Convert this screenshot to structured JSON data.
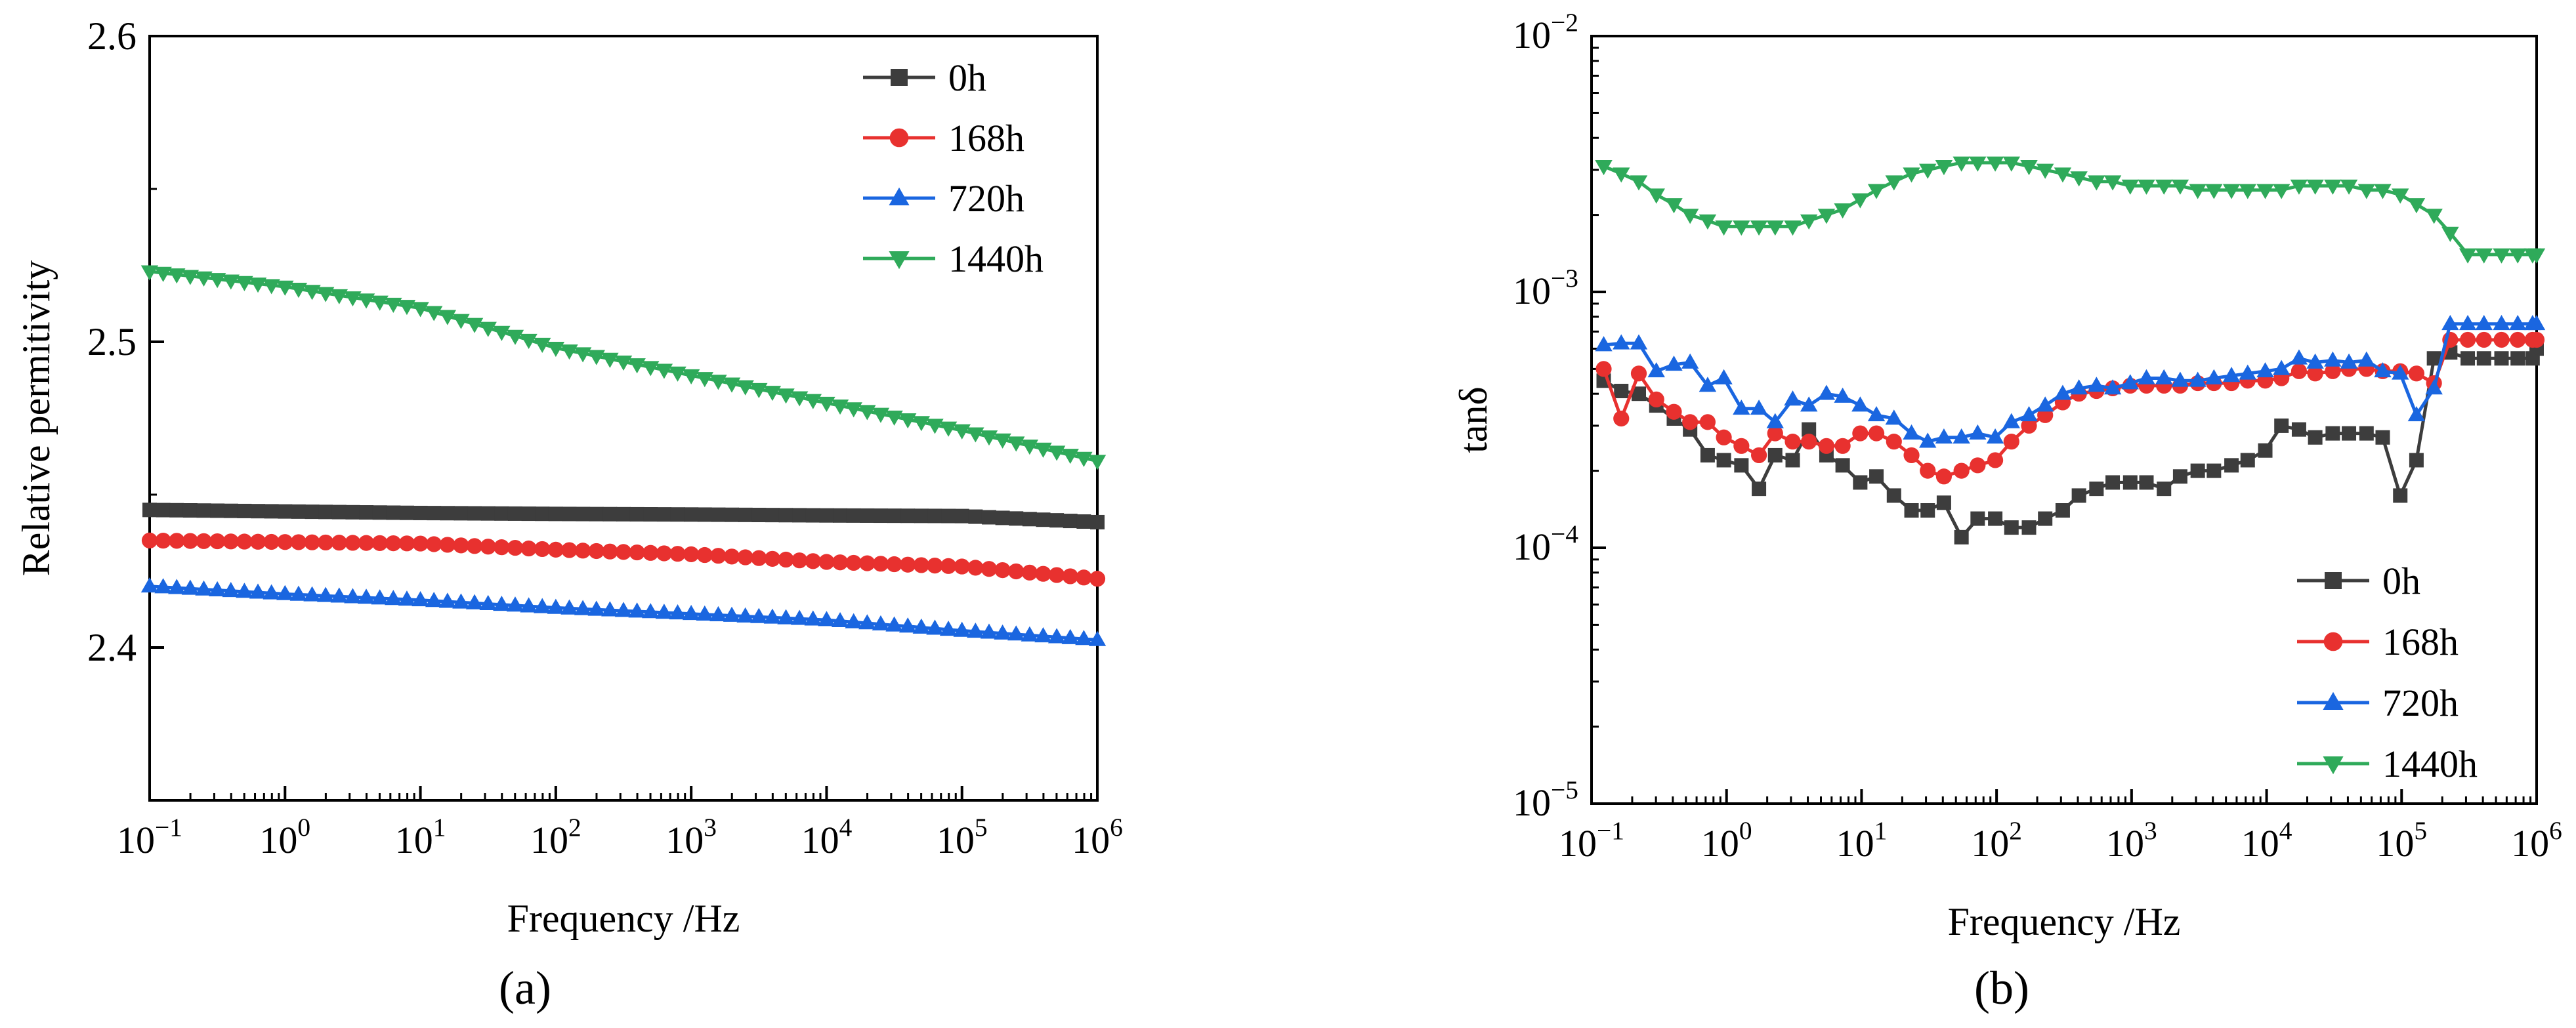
{
  "figure": {
    "panel_a_label": "(a)",
    "panel_b_label": "(b)"
  },
  "legend_labels": [
    "0h",
    "168h",
    "720h",
    "1440h"
  ],
  "series_colors": [
    "#3d3d3d",
    "#e8312f",
    "#1a66e0",
    "#2faa5a"
  ],
  "series_markers": [
    "square",
    "circle",
    "triangle-up",
    "triangle-down"
  ],
  "chart_data": [
    {
      "type": "line",
      "panel": "(a)",
      "title": "",
      "xlabel": "Frequency /Hz",
      "ylabel": "Relative permitivity",
      "xscale": "log",
      "yscale": "linear",
      "xlim_exp": [
        -1,
        6
      ],
      "ylim": [
        2.35,
        2.6
      ],
      "xtick_exponents": [
        -1,
        0,
        1,
        2,
        3,
        4,
        5,
        6
      ],
      "xtick_labels": [
        "10",
        "10",
        "10",
        "10",
        "10",
        "10",
        "10",
        "10"
      ],
      "xtick_exp_labels": [
        "−1",
        "0",
        "1",
        "2",
        "3",
        "4",
        "5",
        "6"
      ],
      "yticks": [
        2.4,
        2.5,
        2.6
      ],
      "ytick_labels": [
        "2.4",
        "2.5",
        "2.6"
      ],
      "legend_position": "top-right",
      "log_freq_start": -1,
      "log_freq_end": 6,
      "points_per_series": 71,
      "series": [
        {
          "name": "0h",
          "control_log_f": [
            -1,
            0,
            1,
            2,
            3,
            4,
            5,
            6
          ],
          "control_values": [
            2.445,
            2.4445,
            2.444,
            2.4437,
            2.4435,
            2.4432,
            2.443,
            2.441
          ]
        },
        {
          "name": "168h",
          "control_log_f": [
            -1,
            0,
            1,
            2,
            3,
            4,
            5,
            6
          ],
          "control_values": [
            2.435,
            2.4345,
            2.434,
            2.432,
            2.4305,
            2.428,
            2.4265,
            2.4225
          ]
        },
        {
          "name": "720h",
          "control_log_f": [
            -1,
            0,
            1,
            2,
            3,
            4,
            5,
            6
          ],
          "control_values": [
            2.42,
            2.4175,
            2.4155,
            2.413,
            2.411,
            2.409,
            2.4055,
            2.4025
          ]
        },
        {
          "name": "1440h",
          "control_log_f": [
            -1,
            0,
            1,
            2,
            3,
            4,
            5,
            6
          ],
          "control_values": [
            2.523,
            2.518,
            2.511,
            2.498,
            2.489,
            2.48,
            2.471,
            2.461
          ]
        }
      ]
    },
    {
      "type": "line",
      "panel": "(b)",
      "title": "",
      "xlabel": "Frequency /Hz",
      "ylabel": "tanδ",
      "xscale": "log",
      "yscale": "log",
      "xlim_exp": [
        -1,
        6
      ],
      "ylim_exp": [
        -5,
        -2
      ],
      "xtick_exponents": [
        -1,
        0,
        1,
        2,
        3,
        4,
        5,
        6
      ],
      "xtick_labels": [
        "10",
        "10",
        "10",
        "10",
        "10",
        "10",
        "10",
        "10"
      ],
      "xtick_exp_labels": [
        "−1",
        "0",
        "1",
        "2",
        "3",
        "4",
        "5",
        "6"
      ],
      "ytick_exponents": [
        -5,
        -4,
        -3,
        -2
      ],
      "ytick_labels": [
        "10",
        "10",
        "10",
        "10"
      ],
      "ytick_exp_labels": [
        "−5",
        "−4",
        "−3",
        "−2"
      ],
      "legend_position": "bottom-right",
      "log_freq_start": -0.91,
      "log_freq_end": 6,
      "points_per_series": 57,
      "series": [
        {
          "name": "0h",
          "log_f": [
            -0.91,
            -0.78,
            -0.65,
            -0.52,
            -0.39,
            -0.27,
            -0.14,
            -0.02,
            0.11,
            0.24,
            0.36,
            0.49,
            0.61,
            0.74,
            0.86,
            0.99,
            1.11,
            1.24,
            1.37,
            1.49,
            1.61,
            1.74,
            1.86,
            1.99,
            2.11,
            2.24,
            2.36,
            2.49,
            2.61,
            2.74,
            2.86,
            2.99,
            3.11,
            3.24,
            3.36,
            3.49,
            3.61,
            3.74,
            3.86,
            3.99,
            4.11,
            4.24,
            4.36,
            4.49,
            4.61,
            4.74,
            4.86,
            4.99,
            5.11,
            5.24,
            5.36,
            5.49,
            5.61,
            5.74,
            5.86,
            5.97,
            6.0
          ],
          "values": [
            0.00045,
            0.00041,
            0.0004,
            0.00036,
            0.00032,
            0.00029,
            0.00023,
            0.00022,
            0.00021,
            0.00017,
            0.00023,
            0.00022,
            0.00029,
            0.00023,
            0.00021,
            0.00018,
            0.00019,
            0.00016,
            0.00014,
            0.00014,
            0.00015,
            0.00011,
            0.00013,
            0.00013,
            0.00012,
            0.00012,
            0.00013,
            0.00014,
            0.00016,
            0.00017,
            0.00018,
            0.00018,
            0.00018,
            0.00017,
            0.00019,
            0.0002,
            0.0002,
            0.00021,
            0.00022,
            0.00024,
            0.0003,
            0.00029,
            0.00027,
            0.00028,
            0.00028,
            0.00028,
            0.00027,
            0.00016,
            0.00022,
            0.00055,
            0.00058,
            0.00055,
            0.00055,
            0.00055,
            0.00055,
            0.00055,
            0.0006
          ]
        },
        {
          "name": "168h",
          "log_f": [
            -0.91,
            -0.78,
            -0.65,
            -0.52,
            -0.39,
            -0.27,
            -0.14,
            -0.02,
            0.11,
            0.24,
            0.36,
            0.49,
            0.61,
            0.74,
            0.86,
            0.99,
            1.11,
            1.24,
            1.37,
            1.49,
            1.61,
            1.74,
            1.86,
            1.99,
            2.11,
            2.24,
            2.36,
            2.49,
            2.61,
            2.74,
            2.86,
            2.99,
            3.11,
            3.24,
            3.36,
            3.49,
            3.61,
            3.74,
            3.86,
            3.99,
            4.11,
            4.24,
            4.36,
            4.49,
            4.61,
            4.74,
            4.86,
            4.99,
            5.11,
            5.24,
            5.36,
            5.49,
            5.61,
            5.74,
            5.86,
            5.97,
            6.0
          ],
          "values": [
            0.0005,
            0.00032,
            0.00048,
            0.00038,
            0.00034,
            0.00031,
            0.00031,
            0.00027,
            0.00025,
            0.00023,
            0.00028,
            0.00026,
            0.00026,
            0.00025,
            0.00025,
            0.00028,
            0.00028,
            0.00026,
            0.00023,
            0.0002,
            0.00019,
            0.0002,
            0.00021,
            0.00022,
            0.00026,
            0.0003,
            0.00033,
            0.00037,
            0.0004,
            0.00041,
            0.00042,
            0.00043,
            0.00043,
            0.00043,
            0.00043,
            0.00044,
            0.00044,
            0.00044,
            0.00045,
            0.00045,
            0.00046,
            0.00049,
            0.00048,
            0.00049,
            0.0005,
            0.0005,
            0.00049,
            0.00049,
            0.00048,
            0.00044,
            0.00065,
            0.00065,
            0.00065,
            0.00065,
            0.00065,
            0.00065,
            0.00065
          ]
        },
        {
          "name": "720h",
          "log_f": [
            -0.91,
            -0.78,
            -0.65,
            -0.52,
            -0.39,
            -0.27,
            -0.14,
            -0.02,
            0.11,
            0.24,
            0.36,
            0.49,
            0.61,
            0.74,
            0.86,
            0.99,
            1.11,
            1.24,
            1.37,
            1.49,
            1.61,
            1.74,
            1.86,
            1.99,
            2.11,
            2.24,
            2.36,
            2.49,
            2.61,
            2.74,
            2.86,
            2.99,
            3.11,
            3.24,
            3.36,
            3.49,
            3.61,
            3.74,
            3.86,
            3.99,
            4.11,
            4.24,
            4.36,
            4.49,
            4.61,
            4.74,
            4.86,
            4.99,
            5.11,
            5.24,
            5.36,
            5.49,
            5.61,
            5.74,
            5.86,
            5.97,
            6.0
          ],
          "values": [
            0.00062,
            0.00063,
            0.00063,
            0.00049,
            0.00052,
            0.00053,
            0.00043,
            0.00046,
            0.00035,
            0.00035,
            0.00031,
            0.00038,
            0.00036,
            0.0004,
            0.00039,
            0.00036,
            0.00033,
            0.00032,
            0.00028,
            0.00026,
            0.00027,
            0.00027,
            0.00028,
            0.00027,
            0.00031,
            0.00033,
            0.00036,
            0.0004,
            0.00042,
            0.00043,
            0.00042,
            0.00044,
            0.00046,
            0.00046,
            0.00045,
            0.00045,
            0.00046,
            0.00047,
            0.00048,
            0.00049,
            0.0005,
            0.00055,
            0.00053,
            0.00054,
            0.00053,
            0.00054,
            0.00049,
            0.00048,
            0.00033,
            0.00042,
            0.00075,
            0.00075,
            0.00075,
            0.00075,
            0.00075,
            0.00075,
            0.00075
          ]
        },
        {
          "name": "1440h",
          "log_f": [
            -0.91,
            -0.78,
            -0.65,
            -0.52,
            -0.39,
            -0.27,
            -0.14,
            -0.02,
            0.11,
            0.24,
            0.36,
            0.49,
            0.61,
            0.74,
            0.86,
            0.99,
            1.11,
            1.24,
            1.37,
            1.49,
            1.61,
            1.74,
            1.86,
            1.99,
            2.11,
            2.24,
            2.36,
            2.49,
            2.61,
            2.74,
            2.86,
            2.99,
            3.11,
            3.24,
            3.36,
            3.49,
            3.61,
            3.74,
            3.86,
            3.99,
            4.11,
            4.24,
            4.36,
            4.49,
            4.61,
            4.74,
            4.86,
            4.99,
            5.11,
            5.24,
            5.36,
            5.49,
            5.61,
            5.74,
            5.86,
            5.97,
            6.0
          ],
          "values": [
            0.0031,
            0.0029,
            0.0027,
            0.0024,
            0.0022,
            0.002,
            0.0019,
            0.0018,
            0.0018,
            0.0018,
            0.0018,
            0.0018,
            0.0019,
            0.002,
            0.0021,
            0.0023,
            0.0025,
            0.0027,
            0.0029,
            0.003,
            0.0031,
            0.0032,
            0.0032,
            0.0032,
            0.0032,
            0.0031,
            0.003,
            0.0029,
            0.0028,
            0.0027,
            0.0027,
            0.0026,
            0.0026,
            0.0026,
            0.0026,
            0.0025,
            0.0025,
            0.0025,
            0.0025,
            0.0025,
            0.0025,
            0.0026,
            0.0026,
            0.0026,
            0.0026,
            0.0025,
            0.0025,
            0.0024,
            0.0022,
            0.002,
            0.0017,
            0.0014,
            0.0014,
            0.0014,
            0.0014,
            0.0014,
            0.0014
          ]
        }
      ]
    }
  ]
}
